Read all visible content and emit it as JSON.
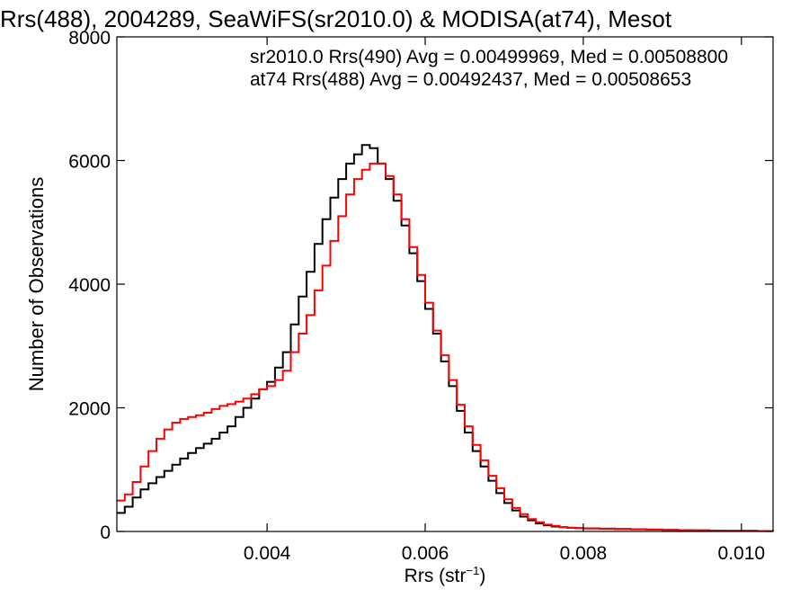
{
  "chart_data": {
    "type": "line",
    "title": "Rrs(488), 2004289, SeaWiFS(sr2010.0) & MODISA(at74), Mesot",
    "xlabel_main": "Rrs (str",
    "xlabel_sup": "−1",
    "xlabel_close": ")",
    "ylabel": "Number of Observations",
    "xlim": [
      0.0021,
      0.0104
    ],
    "ylim": [
      0,
      8000
    ],
    "xticks": [
      {
        "v": 0.004,
        "label": "0.004"
      },
      {
        "v": 0.006,
        "label": "0.006"
      },
      {
        "v": 0.008,
        "label": "0.008"
      },
      {
        "v": 0.01,
        "label": "0.010"
      }
    ],
    "yticks": [
      {
        "v": 0,
        "label": "0"
      },
      {
        "v": 2000,
        "label": "2000"
      },
      {
        "v": 4000,
        "label": "4000"
      },
      {
        "v": 6000,
        "label": "6000"
      },
      {
        "v": 8000,
        "label": "8000"
      }
    ],
    "grid": false,
    "legend_position": "top-right",
    "series": [
      {
        "name": "sr2010.0",
        "label": "sr2010.0 Rrs(490) Avg = 0.00499969, Med = 0.00508800",
        "color": "#000000",
        "x": [
          0.0021,
          0.0022,
          0.0023,
          0.0024,
          0.0025,
          0.0026,
          0.0027,
          0.0028,
          0.0029,
          0.003,
          0.0031,
          0.0032,
          0.0033,
          0.0034,
          0.0035,
          0.0036,
          0.0037,
          0.0038,
          0.0039,
          0.004,
          0.0041,
          0.0042,
          0.0043,
          0.0044,
          0.0045,
          0.0046,
          0.0047,
          0.0048,
          0.0049,
          0.005,
          0.0051,
          0.0052,
          0.0053,
          0.0054,
          0.0055,
          0.0056,
          0.0057,
          0.0058,
          0.0059,
          0.006,
          0.0061,
          0.0062,
          0.0063,
          0.0064,
          0.0065,
          0.0066,
          0.0067,
          0.0068,
          0.0069,
          0.007,
          0.0071,
          0.0072,
          0.0073,
          0.0074,
          0.0075,
          0.0076,
          0.0077,
          0.0078,
          0.0079,
          0.008,
          0.0082,
          0.0084,
          0.0086,
          0.0088,
          0.009,
          0.0092,
          0.0094,
          0.0096,
          0.0098,
          0.01,
          0.0102,
          0.0104
        ],
        "y": [
          300,
          400,
          550,
          680,
          780,
          880,
          980,
          1080,
          1180,
          1270,
          1350,
          1420,
          1500,
          1600,
          1700,
          1850,
          2000,
          2150,
          2300,
          2420,
          2650,
          2900,
          3350,
          3800,
          4200,
          4650,
          5050,
          5400,
          5700,
          5950,
          6100,
          6250,
          6200,
          5950,
          5700,
          5350,
          4950,
          4500,
          4050,
          3600,
          3200,
          2750,
          2350,
          1950,
          1600,
          1300,
          1050,
          820,
          620,
          460,
          340,
          240,
          180,
          130,
          100,
          80,
          70,
          60,
          55,
          50,
          45,
          40,
          35,
          30,
          25,
          20,
          18,
          15,
          12,
          10,
          8,
          5
        ]
      },
      {
        "name": "at74",
        "label": "at74 Rrs(488) Avg = 0.00492437, Med = 0.00508653",
        "color": "#ff0000",
        "x": [
          0.0021,
          0.0022,
          0.0023,
          0.0024,
          0.0025,
          0.0026,
          0.0027,
          0.0028,
          0.0029,
          0.003,
          0.0031,
          0.0032,
          0.0033,
          0.0034,
          0.0035,
          0.0036,
          0.0037,
          0.0038,
          0.0039,
          0.004,
          0.0041,
          0.0042,
          0.0043,
          0.0044,
          0.0045,
          0.0046,
          0.0047,
          0.0048,
          0.0049,
          0.005,
          0.0051,
          0.0052,
          0.0053,
          0.0054,
          0.0055,
          0.0056,
          0.0057,
          0.0058,
          0.0059,
          0.006,
          0.0061,
          0.0062,
          0.0063,
          0.0064,
          0.0065,
          0.0066,
          0.0067,
          0.0068,
          0.0069,
          0.007,
          0.0071,
          0.0072,
          0.0073,
          0.0074,
          0.0075,
          0.0076,
          0.0077,
          0.0078,
          0.0079,
          0.008,
          0.0082,
          0.0084,
          0.0086,
          0.0088,
          0.009,
          0.0092,
          0.0094,
          0.0096,
          0.0098,
          0.01,
          0.0102,
          0.0104
        ],
        "y": [
          500,
          600,
          800,
          1050,
          1300,
          1500,
          1650,
          1760,
          1820,
          1850,
          1880,
          1920,
          1980,
          2030,
          2060,
          2100,
          2150,
          2220,
          2300,
          2350,
          2450,
          2600,
          2900,
          3200,
          3500,
          3900,
          4300,
          4700,
          5100,
          5450,
          5700,
          5850,
          5950,
          5950,
          5750,
          5450,
          5050,
          4600,
          4150,
          3700,
          3250,
          2850,
          2450,
          2050,
          1700,
          1400,
          1150,
          900,
          700,
          520,
          380,
          280,
          200,
          150,
          110,
          90,
          70,
          60,
          55,
          50,
          45,
          40,
          35,
          30,
          25,
          20,
          18,
          15,
          12,
          10,
          8,
          5
        ]
      }
    ]
  }
}
